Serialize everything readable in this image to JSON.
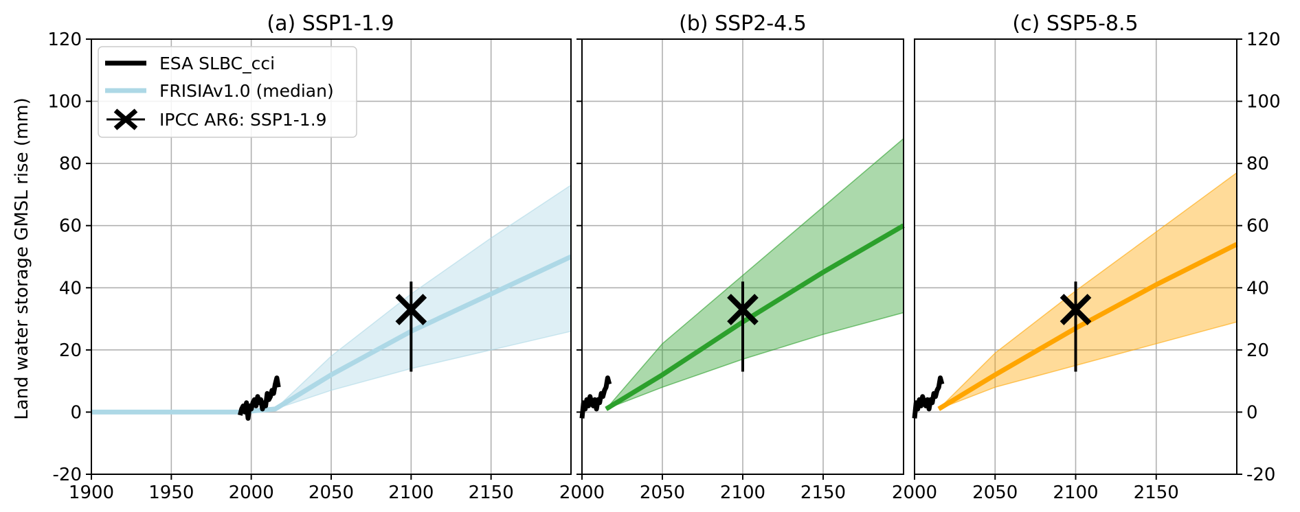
{
  "figure": {
    "ylabel": "Land water storage GMSL rise (mm)",
    "legend_location": "upper-left"
  },
  "legend": [
    {
      "label": "ESA SLBC_cci",
      "color": "#000000",
      "kind": "line"
    },
    {
      "label": "FRISIAv1.0 (median)",
      "color": "#add8e6",
      "kind": "line"
    },
    {
      "label": "IPCC AR6: SSP1-1.9",
      "color": "#000000",
      "kind": "marker-x"
    }
  ],
  "chart_data": [
    {
      "type": "line",
      "title": "(a) SSP1-1.9",
      "xlim": [
        1900,
        2200
      ],
      "ylim": [
        -20,
        120
      ],
      "xticks": [
        1900,
        1950,
        2000,
        2050,
        2100,
        2150
      ],
      "yticks": [
        -20,
        0,
        20,
        40,
        60,
        80,
        100,
        120
      ],
      "grid": true,
      "color": "#add8e6",
      "band_color": "#add8e6",
      "observations": {
        "name": "ESA SLBC_cci",
        "x": [
          1993,
          1994,
          1995,
          1996,
          1997,
          1998,
          1999,
          2000,
          2001,
          2002,
          2003,
          2004,
          2005,
          2006,
          2007,
          2008,
          2009,
          2010,
          2011,
          2012,
          2013,
          2014,
          2015,
          2016,
          2017
        ],
        "y": [
          -1,
          1,
          2,
          0,
          3,
          -2,
          2,
          1,
          3,
          4,
          2,
          5,
          3,
          4,
          1,
          3,
          2,
          6,
          4,
          5,
          7,
          6,
          9,
          11,
          8
        ]
      },
      "median": {
        "name": "FRISIAv1.0 (median)",
        "x": [
          1900,
          1993,
          2015,
          2050,
          2100,
          2150,
          2200
        ],
        "y": [
          0,
          0,
          1,
          12,
          26,
          38,
          50
        ]
      },
      "band": {
        "x": [
          2015,
          2050,
          2100,
          2150,
          2200
        ],
        "lower": [
          1,
          7,
          14,
          20,
          26
        ],
        "upper": [
          1,
          18,
          38,
          56,
          73
        ]
      },
      "ipcc": {
        "x": 2100,
        "y": 33,
        "low": 13,
        "high": 42
      }
    },
    {
      "type": "line",
      "title": "(b) SSP2-4.5",
      "xlim": [
        2000,
        2200
      ],
      "ylim": [
        -20,
        120
      ],
      "xticks": [
        2000,
        2050,
        2100,
        2150
      ],
      "yticks": [
        -20,
        0,
        20,
        40,
        60,
        80,
        100,
        120
      ],
      "grid": true,
      "color": "#2ca02c",
      "band_color": "#2ca02c",
      "observations": {
        "name": "ESA SLBC_cci",
        "x": [
          2000,
          2001,
          2002,
          2003,
          2004,
          2005,
          2006,
          2007,
          2008,
          2009,
          2010,
          2011,
          2012,
          2013,
          2014,
          2015,
          2016,
          2017
        ],
        "y": [
          -2,
          3,
          1,
          4,
          2,
          5,
          3,
          2,
          4,
          1,
          4,
          3,
          6,
          5,
          7,
          8,
          11,
          9
        ]
      },
      "median": {
        "name": "FRISIAv1.0 (median)",
        "x": [
          2015,
          2050,
          2100,
          2150,
          2200
        ],
        "y": [
          1,
          12,
          29,
          45,
          60
        ]
      },
      "band": {
        "x": [
          2015,
          2050,
          2100,
          2150,
          2200
        ],
        "lower": [
          1,
          8,
          17,
          25,
          32
        ],
        "upper": [
          1,
          22,
          44,
          66,
          88
        ]
      },
      "ipcc": {
        "x": 2100,
        "y": 33,
        "low": 13,
        "high": 42
      }
    },
    {
      "type": "line",
      "title": "(c) SSP5-8.5",
      "xlim": [
        2000,
        2200
      ],
      "ylim": [
        -20,
        120
      ],
      "xticks": [
        2000,
        2050,
        2100,
        2150
      ],
      "yticks": [
        -20,
        0,
        20,
        40,
        60,
        80,
        100,
        120
      ],
      "grid": true,
      "color": "#ffa500",
      "band_color": "#ffa500",
      "observations": {
        "name": "ESA SLBC_cci",
        "x": [
          2000,
          2001,
          2002,
          2003,
          2004,
          2005,
          2006,
          2007,
          2008,
          2009,
          2010,
          2011,
          2012,
          2013,
          2014,
          2015,
          2016,
          2017
        ],
        "y": [
          -2,
          3,
          1,
          4,
          2,
          5,
          3,
          2,
          4,
          1,
          4,
          3,
          6,
          5,
          7,
          8,
          11,
          9
        ]
      },
      "median": {
        "name": "FRISIAv1.0 (median)",
        "x": [
          2015,
          2050,
          2100,
          2150,
          2200
        ],
        "y": [
          1,
          12,
          27,
          41,
          54
        ]
      },
      "band": {
        "x": [
          2015,
          2050,
          2100,
          2150,
          2200
        ],
        "lower": [
          1,
          8,
          15,
          22,
          29
        ],
        "upper": [
          1,
          19,
          39,
          58,
          77
        ]
      },
      "ipcc": {
        "x": 2100,
        "y": 33,
        "low": 13,
        "high": 42
      }
    }
  ]
}
